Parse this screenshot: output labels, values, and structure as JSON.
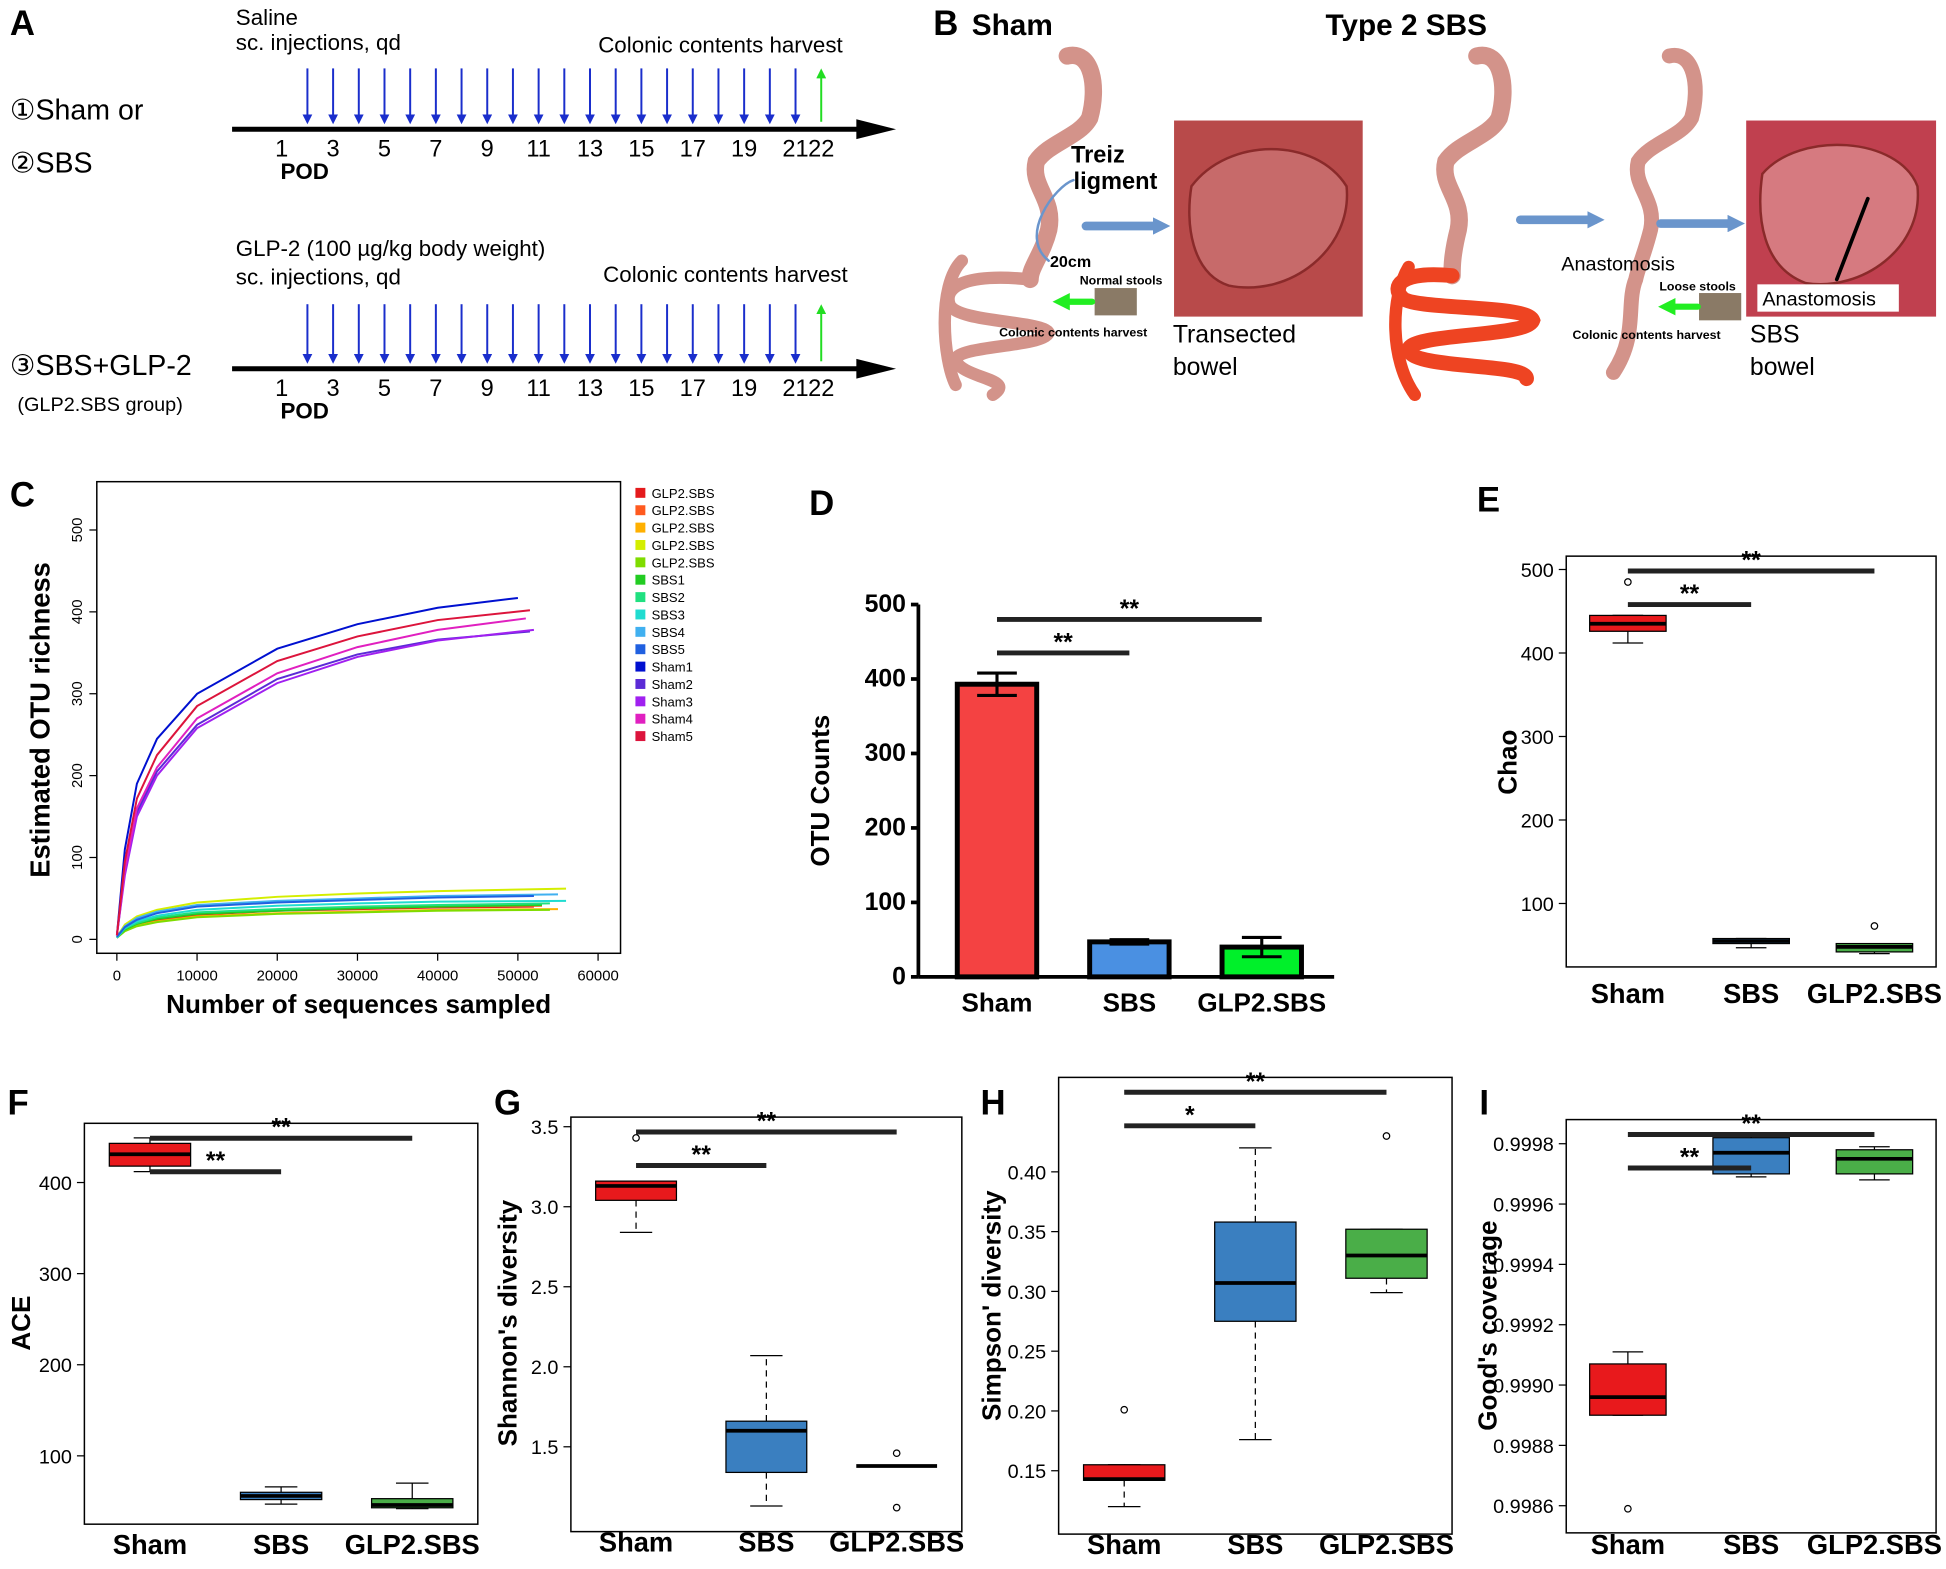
{
  "panel_a": {
    "label": "A",
    "day_unit": "POD",
    "days": [
      1,
      3,
      5,
      7,
      9,
      11,
      13,
      15,
      17,
      19,
      21,
      22
    ],
    "groups": [
      {
        "treatment": [
          "Saline",
          "sc. injections, qd"
        ],
        "harvest": "Colonic contents harvest",
        "group": [
          "①Sham or",
          "②SBS"
        ]
      },
      {
        "treatment": [
          "GLP-2 (100 µg/kg body weight)",
          "sc. injections, qd"
        ],
        "harvest": "Colonic contents harvest",
        "group": [
          "③SBS+GLP-2",
          "(GLP2.SBS group)"
        ]
      }
    ]
  },
  "panel_b": {
    "label": "B",
    "titles": [
      "Sham",
      "Type 2 SBS"
    ],
    "sham": {
      "ligament": [
        "Treiz",
        "ligment"
      ],
      "length": "20cm",
      "stools": "Normal stools",
      "harvest": "Colonic contents harvest",
      "bowel": [
        "Transected",
        "bowel"
      ]
    },
    "sbs": {
      "anastomosis": "Anastomosis",
      "stools": "Loose stools",
      "harvest": "Colonic contents harvest",
      "bowel": [
        "SBS",
        "bowel"
      ],
      "photo_label": "Anastomosis"
    }
  },
  "chart_data": [
    {
      "type": "line",
      "panel": "C",
      "frame": true,
      "xlabel": "Number of sequences sampled",
      "ylabel": "Estimated  OTU richness",
      "xlim": [
        -2500,
        62800
      ],
      "xticks": [
        0,
        10000,
        20000,
        30000,
        40000,
        50000,
        60000
      ],
      "ylim": [
        -17,
        559
      ],
      "yticks": [
        0,
        100,
        200,
        300,
        400,
        500
      ],
      "series": [
        {
          "name": "GLP2.SBS",
          "color": "#e41a1c",
          "x": [
            0,
            1000,
            2500,
            5000,
            10000,
            20000,
            30000,
            40000,
            52000
          ],
          "values": [
            2,
            12,
            18,
            24,
            30,
            35,
            37,
            39,
            40
          ]
        },
        {
          "name": "GLP2.SBS",
          "color": "#ff5a1f",
          "x": [
            0,
            1000,
            2500,
            5000,
            10000,
            20000,
            30000,
            40000,
            53000
          ],
          "values": [
            2,
            13,
            20,
            26,
            32,
            36,
            38,
            40,
            41
          ]
        },
        {
          "name": "GLP2.SBS",
          "color": "#ffb000",
          "x": [
            0,
            1000,
            2500,
            5000,
            10000,
            20000,
            30000,
            40000,
            55000
          ],
          "values": [
            2,
            11,
            17,
            22,
            28,
            32,
            34,
            36,
            37
          ]
        },
        {
          "name": "GLP2.SBS",
          "color": "#d4ee00",
          "x": [
            0,
            1000,
            2500,
            5000,
            10000,
            20000,
            30000,
            40000,
            56000
          ],
          "values": [
            3,
            18,
            28,
            36,
            45,
            52,
            56,
            59,
            62
          ]
        },
        {
          "name": "GLP2.SBS",
          "color": "#7fdc00",
          "x": [
            0,
            1000,
            2500,
            5000,
            10000,
            20000,
            30000,
            40000,
            54000
          ],
          "values": [
            2,
            10,
            16,
            21,
            27,
            31,
            33,
            35,
            36
          ]
        },
        {
          "name": "SBS1",
          "color": "#22cc22",
          "x": [
            0,
            1000,
            2500,
            5000,
            10000,
            20000,
            30000,
            40000,
            53000
          ],
          "values": [
            2,
            12,
            19,
            25,
            31,
            35,
            38,
            40,
            42
          ]
        },
        {
          "name": "SBS2",
          "color": "#20e080",
          "x": [
            0,
            1000,
            2500,
            5000,
            10000,
            20000,
            30000,
            40000,
            54000
          ],
          "values": [
            2,
            13,
            20,
            27,
            33,
            37,
            40,
            42,
            44
          ]
        },
        {
          "name": "SBS3",
          "color": "#20dcd0",
          "x": [
            0,
            1000,
            2500,
            5000,
            10000,
            20000,
            30000,
            40000,
            56000
          ],
          "values": [
            2,
            14,
            22,
            29,
            36,
            41,
            44,
            46,
            47
          ]
        },
        {
          "name": "SBS4",
          "color": "#40b0f0",
          "x": [
            0,
            1000,
            2500,
            5000,
            10000,
            20000,
            30000,
            40000,
            55000
          ],
          "values": [
            3,
            16,
            26,
            34,
            42,
            47,
            50,
            53,
            55
          ]
        },
        {
          "name": "SBS5",
          "color": "#2060e0",
          "x": [
            0,
            1000,
            2500,
            5000,
            10000,
            20000,
            30000,
            40000,
            52000
          ],
          "values": [
            3,
            15,
            24,
            32,
            40,
            45,
            48,
            51,
            53
          ]
        },
        {
          "name": "Sham1",
          "color": "#0010d0",
          "x": [
            0,
            1000,
            2500,
            5000,
            10000,
            20000,
            30000,
            40000,
            50000
          ],
          "values": [
            5,
            110,
            190,
            245,
            300,
            355,
            385,
            405,
            417
          ]
        },
        {
          "name": "Sham2",
          "color": "#5b2bd6",
          "x": [
            0,
            1000,
            2500,
            5000,
            10000,
            20000,
            30000,
            40000,
            51500
          ],
          "values": [
            5,
            82,
            155,
            205,
            262,
            318,
            348,
            366,
            376
          ]
        },
        {
          "name": "Sham3",
          "color": "#a020f0",
          "x": [
            0,
            1000,
            2500,
            5000,
            10000,
            20000,
            30000,
            40000,
            52000
          ],
          "values": [
            5,
            78,
            150,
            200,
            258,
            313,
            345,
            365,
            378
          ]
        },
        {
          "name": "Sham4",
          "color": "#e020c0",
          "x": [
            0,
            1000,
            2500,
            5000,
            10000,
            20000,
            30000,
            40000,
            51000
          ],
          "values": [
            5,
            85,
            160,
            210,
            270,
            325,
            357,
            378,
            392
          ]
        },
        {
          "name": "Sham5",
          "color": "#dc143c",
          "x": [
            0,
            1000,
            2500,
            5000,
            10000,
            20000,
            30000,
            40000,
            51500
          ],
          "values": [
            5,
            95,
            172,
            225,
            285,
            340,
            370,
            390,
            402
          ]
        }
      ]
    },
    {
      "type": "bar",
      "panel": "D",
      "frame": false,
      "ylabel": "OTU Counts",
      "categories": [
        "Sham",
        "SBS",
        "GLP2.SBS"
      ],
      "values": [
        393,
        47,
        40
      ],
      "errors": [
        15,
        3,
        13
      ],
      "colors": [
        "#f44242",
        "#4a90e2",
        "#00f02a"
      ],
      "ylim": [
        0,
        500
      ],
      "yticks": [
        0,
        100,
        200,
        300,
        400,
        500
      ],
      "annotations": [
        {
          "text": "**",
          "between": [
            "Sham",
            "SBS"
          ]
        },
        {
          "text": "**",
          "between": [
            "Sham",
            "GLP2.SBS"
          ]
        }
      ]
    },
    {
      "type": "box",
      "panel": "E",
      "frame": true,
      "ylabel": "Chao",
      "categories": [
        "Sham",
        "SBS",
        "GLP2.SBS"
      ],
      "colors": [
        "#e8191c",
        "#3a7fc0",
        "#4aae48"
      ],
      "boxes": [
        {
          "min": 412,
          "q1": 426,
          "median": 435,
          "q3": 445,
          "max": 445,
          "outliers": [
            485
          ]
        },
        {
          "min": 47,
          "q1": 52,
          "median": 55,
          "q3": 58,
          "max": 58,
          "outliers": []
        },
        {
          "min": 40,
          "q1": 42,
          "median": 48,
          "q3": 52,
          "max": 52,
          "outliers": [
            73
          ]
        }
      ],
      "ylim": [
        24,
        516
      ],
      "yticks": [
        100,
        200,
        300,
        400,
        500
      ],
      "annotations": [
        {
          "text": "**",
          "between": [
            "Sham",
            "SBS"
          ]
        },
        {
          "text": "**",
          "between": [
            "Sham",
            "GLP2.SBS"
          ]
        }
      ]
    },
    {
      "type": "box",
      "panel": "F",
      "frame": true,
      "ylabel": "ACE",
      "categories": [
        "Sham",
        "SBS",
        "GLP2.SBS"
      ],
      "colors": [
        "#e8191c",
        "#3a7fc0",
        "#4aae48"
      ],
      "boxes": [
        {
          "min": 412,
          "q1": 418,
          "median": 431,
          "q3": 443,
          "max": 449,
          "outliers": []
        },
        {
          "min": 47,
          "q1": 52,
          "median": 56,
          "q3": 60,
          "max": 66,
          "outliers": []
        },
        {
          "min": 42,
          "q1": 43,
          "median": 46,
          "q3": 53,
          "max": 70,
          "outliers": []
        }
      ],
      "ylim": [
        25,
        465
      ],
      "yticks": [
        100,
        200,
        300,
        400
      ],
      "annotations": [
        {
          "text": "**",
          "between": [
            "Sham",
            "SBS"
          ]
        },
        {
          "text": "**",
          "between": [
            "Sham",
            "GLP2.SBS"
          ]
        }
      ]
    },
    {
      "type": "box",
      "panel": "G",
      "frame": true,
      "whisker_dash": true,
      "ylabel": "Shannon's diversity",
      "categories": [
        "Sham",
        "SBS",
        "GLP2.SBS"
      ],
      "colors": [
        "#e8191c",
        "#3a7fc0",
        "#4aae48"
      ],
      "boxes": [
        {
          "min": 2.84,
          "q1": 3.04,
          "median": 3.13,
          "q3": 3.16,
          "max": 3.16,
          "outliers": [
            3.43
          ]
        },
        {
          "min": 1.13,
          "q1": 1.34,
          "median": 1.6,
          "q3": 1.66,
          "max": 2.07,
          "outliers": []
        },
        {
          "min": 1.38,
          "q1": 1.38,
          "median": 1.38,
          "q3": 1.38,
          "max": 1.38,
          "outliers": [
            1.46,
            1.12
          ]
        }
      ],
      "ylim": [
        0.97,
        3.56
      ],
      "yticks": [
        1.5,
        {
          "value": 2,
          "label": "2.0"
        },
        2.5,
        {
          "value": 3,
          "label": "3.0"
        },
        3.5
      ],
      "annotations": [
        {
          "text": "**",
          "between": [
            "Sham",
            "SBS"
          ]
        },
        {
          "text": "**",
          "between": [
            "Sham",
            "GLP2.SBS"
          ]
        }
      ]
    },
    {
      "type": "box",
      "panel": "H",
      "frame": true,
      "whisker_dash": true,
      "ylabel": "Simpson' diversity",
      "categories": [
        "Sham",
        "SBS",
        "GLP2.SBS"
      ],
      "colors": [
        "#e8191c",
        "#3a7fc0",
        "#4aae48"
      ],
      "boxes": [
        {
          "min": 0.12,
          "q1": 0.142,
          "median": 0.143,
          "q3": 0.155,
          "max": 0.155,
          "outliers": [
            0.201
          ]
        },
        {
          "min": 0.176,
          "q1": 0.275,
          "median": 0.307,
          "q3": 0.358,
          "max": 0.42,
          "outliers": []
        },
        {
          "min": 0.299,
          "q1": 0.311,
          "median": 0.33,
          "q3": 0.352,
          "max": 0.352,
          "outliers": [
            0.43
          ]
        }
      ],
      "ylim": [
        0.097,
        0.479
      ],
      "yticks": [
        0.15,
        {
          "value": 0.2,
          "label": "0.20"
        },
        0.25,
        {
          "value": 0.3,
          "label": "0.30"
        },
        0.35,
        {
          "value": 0.4,
          "label": "0.40"
        }
      ],
      "annotations": [
        {
          "text": "*",
          "between": [
            "Sham",
            "SBS"
          ]
        },
        {
          "text": "**",
          "between": [
            "Sham",
            "GLP2.SBS"
          ]
        }
      ]
    },
    {
      "type": "box",
      "panel": "I",
      "frame": true,
      "ylabel": "Good's coverage",
      "categories": [
        "Sham",
        "SBS",
        "GLP2.SBS"
      ],
      "colors": [
        "#e8191c",
        "#3a7fc0",
        "#4aae48"
      ],
      "boxes": [
        {
          "min": 0.9989,
          "q1": 0.9989,
          "median": 0.99896,
          "q3": 0.99907,
          "max": 0.99911,
          "outliers": [
            0.99859
          ]
        },
        {
          "min": 0.99969,
          "q1": 0.9997,
          "median": 0.99977,
          "q3": 0.99982,
          "max": 0.99983,
          "outliers": []
        },
        {
          "min": 0.99968,
          "q1": 0.9997,
          "median": 0.99975,
          "q3": 0.99978,
          "max": 0.99979,
          "outliers": []
        }
      ],
      "ylim": [
        0.99851,
        0.99988
      ],
      "yticks": [
        0.9986,
        0.9988,
        {
          "value": 0.999,
          "label": "0.9990"
        },
        0.9992,
        0.9994,
        0.9996,
        0.9998
      ],
      "annotations": [
        {
          "text": "**",
          "between": [
            "Sham",
            "SBS"
          ]
        },
        {
          "text": "**",
          "between": [
            "Sham",
            "GLP2.SBS"
          ]
        }
      ]
    }
  ]
}
